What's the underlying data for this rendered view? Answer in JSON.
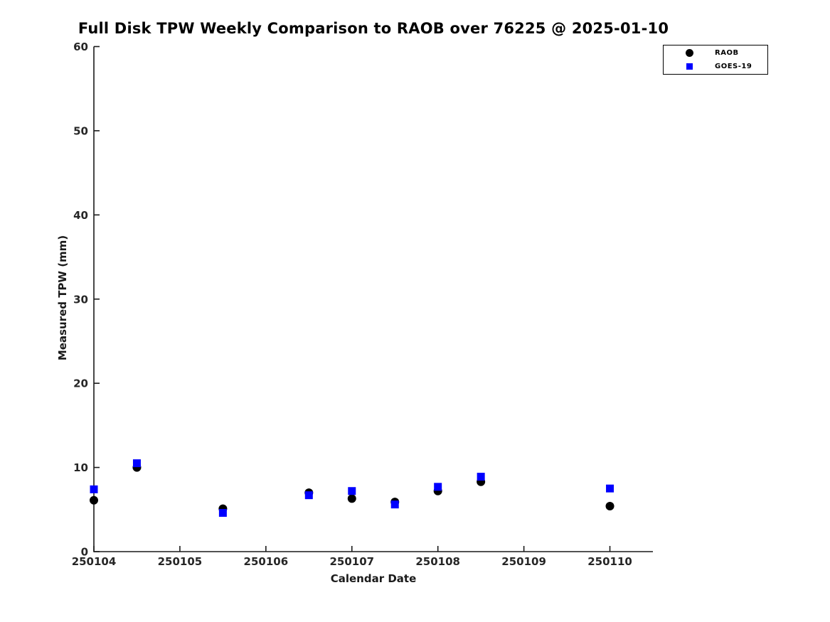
{
  "page": {
    "background": "#ffffff"
  },
  "chart_data": {
    "type": "scatter",
    "title": "Full Disk TPW Weekly Comparison to RAOB over 76225 @ 2025-01-10",
    "xlabel": "Calendar Date",
    "ylabel": "Measured TPW (mm)",
    "xlim": [
      250104,
      250110.5
    ],
    "ylim": [
      0,
      60
    ],
    "x_ticks": [
      250104,
      250105,
      250106,
      250107,
      250108,
      250109,
      250110
    ],
    "x_tick_labels": [
      "250104",
      "250105",
      "250106",
      "250107",
      "250108",
      "250109",
      "250110"
    ],
    "y_ticks": [
      0,
      10,
      20,
      30,
      40,
      50,
      60
    ],
    "y_tick_labels": [
      "0",
      "10",
      "20",
      "30",
      "40",
      "50",
      "60"
    ],
    "grid": false,
    "legend_position": "top-right",
    "axis_color": "#1a1a1a",
    "tick_label_color": "#262626",
    "series": [
      {
        "name": "RAOB",
        "marker": "circle",
        "color": "#000000",
        "x": [
          250104,
          250104.5,
          250105.5,
          250106.5,
          250107,
          250107.5,
          250108,
          250108.5,
          250110
        ],
        "y": [
          6.1,
          10.0,
          5.1,
          7.0,
          6.3,
          5.9,
          7.2,
          8.3,
          5.4
        ]
      },
      {
        "name": "GOES-19",
        "marker": "square",
        "color": "#0000ff",
        "x": [
          250104,
          250104.5,
          250105.5,
          250106.5,
          250107,
          250107.5,
          250108,
          250108.5,
          250110
        ],
        "y": [
          7.4,
          10.5,
          4.6,
          6.7,
          7.2,
          5.6,
          7.7,
          8.9,
          7.5
        ]
      }
    ]
  }
}
